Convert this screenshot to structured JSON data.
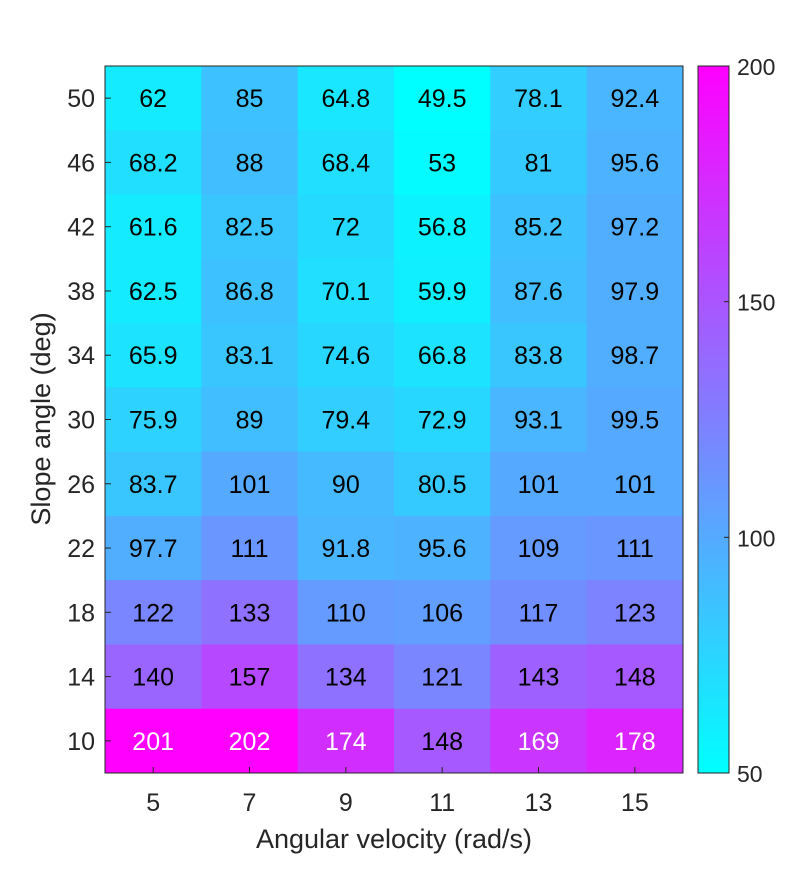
{
  "chart_data": {
    "type": "heatmap",
    "title": "",
    "xlabel": "Angular velocity (rad/s)",
    "ylabel": "Slope angle (deg)",
    "x": [
      "5",
      "7",
      "9",
      "11",
      "13",
      "15"
    ],
    "y": [
      "50",
      "46",
      "42",
      "38",
      "34",
      "30",
      "26",
      "22",
      "18",
      "14",
      "10"
    ],
    "values": [
      [
        62,
        85,
        64.8,
        49.5,
        78.1,
        92.4
      ],
      [
        68.2,
        88,
        68.4,
        53,
        81,
        95.6
      ],
      [
        61.6,
        82.5,
        72,
        56.8,
        85.2,
        97.2
      ],
      [
        62.5,
        86.8,
        70.1,
        59.9,
        87.6,
        97.9
      ],
      [
        65.9,
        83.1,
        74.6,
        66.8,
        83.8,
        98.7
      ],
      [
        75.9,
        89,
        79.4,
        72.9,
        93.1,
        99.5
      ],
      [
        83.7,
        101,
        90,
        80.5,
        101,
        101
      ],
      [
        97.7,
        111,
        91.8,
        95.6,
        109,
        111
      ],
      [
        122,
        133,
        110,
        106,
        117,
        123
      ],
      [
        140,
        157,
        134,
        121,
        143,
        148
      ],
      [
        201,
        202,
        174,
        148,
        169,
        178
      ]
    ],
    "colorbar": {
      "range": [
        50,
        200
      ],
      "ticks": [
        "50",
        "100",
        "150",
        "200"
      ],
      "colormap": "cool",
      "color_low": "#00ffff",
      "color_high": "#ff00ff"
    },
    "cell_label_color_threshold": 160,
    "label_color_dark": "#000000",
    "label_color_light": "#ffffff"
  }
}
